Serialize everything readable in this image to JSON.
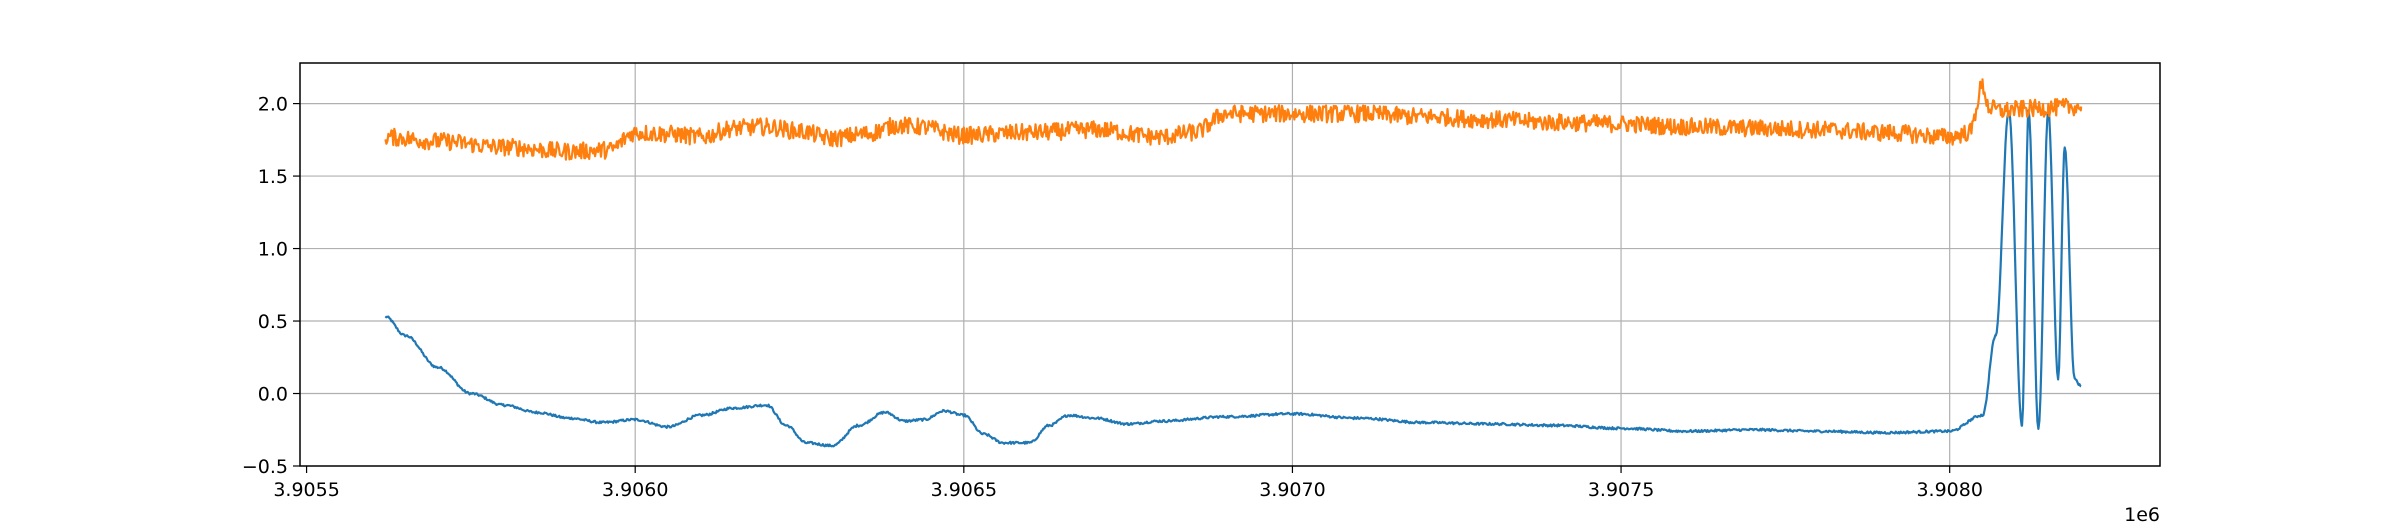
{
  "chart_data": {
    "type": "line",
    "title": "",
    "xlabel": "",
    "ylabel": "",
    "xlim": [
      3905490,
      3908320
    ],
    "ylim": [
      -0.5,
      2.28
    ],
    "grid": true,
    "legend": "none",
    "x_offset_label": "1e6",
    "x_ticks": [
      {
        "value": 3905500,
        "label": "3.9055"
      },
      {
        "value": 3906000,
        "label": "3.9060"
      },
      {
        "value": 3906500,
        "label": "3.9065"
      },
      {
        "value": 3907000,
        "label": "3.9070"
      },
      {
        "value": 3907500,
        "label": "3.9075"
      },
      {
        "value": 3908000,
        "label": "3.9080"
      }
    ],
    "y_ticks": [
      {
        "value": -0.5,
        "label": "−0.5"
      },
      {
        "value": 0.0,
        "label": "0.0"
      },
      {
        "value": 0.5,
        "label": "0.5"
      },
      {
        "value": 1.0,
        "label": "1.0"
      },
      {
        "value": 1.5,
        "label": "1.5"
      },
      {
        "value": 2.0,
        "label": "2.0"
      }
    ],
    "series": [
      {
        "color": "#1f77b4",
        "noise": 0.008,
        "x": [
          3905620,
          3905650,
          3905700,
          3905750,
          3905800,
          3905850,
          3905900,
          3905950,
          3906000,
          3906050,
          3906100,
          3906150,
          3906200,
          3906230,
          3906260,
          3906300,
          3906340,
          3906380,
          3906410,
          3906440,
          3906470,
          3906500,
          3906530,
          3906560,
          3906600,
          3906630,
          3906660,
          3906700,
          3906750,
          3906800,
          3906900,
          3907000,
          3907100,
          3907200,
          3907300,
          3907400,
          3907500,
          3907600,
          3907700,
          3907800,
          3907900,
          3908000,
          3908050,
          3908070,
          3908090,
          3908110,
          3908120,
          3908135,
          3908150,
          3908165,
          3908175,
          3908190,
          3908200
        ],
        "y": [
          0.53,
          0.4,
          0.18,
          0.0,
          -0.08,
          -0.13,
          -0.17,
          -0.2,
          -0.18,
          -0.23,
          -0.15,
          -0.1,
          -0.08,
          -0.22,
          -0.34,
          -0.36,
          -0.22,
          -0.13,
          -0.19,
          -0.18,
          -0.12,
          -0.15,
          -0.28,
          -0.34,
          -0.34,
          -0.22,
          -0.15,
          -0.17,
          -0.21,
          -0.19,
          -0.16,
          -0.14,
          -0.17,
          -0.2,
          -0.21,
          -0.22,
          -0.24,
          -0.26,
          -0.25,
          -0.26,
          -0.27,
          -0.26,
          -0.15,
          0.4,
          1.95,
          -0.22,
          1.95,
          -0.24,
          1.95,
          0.1,
          1.7,
          0.1,
          0.05
        ]
      },
      {
        "color": "#ff7f0e",
        "noise": 0.06,
        "x": [
          3905620,
          3905700,
          3905800,
          3905900,
          3905960,
          3906000,
          3906050,
          3906100,
          3906150,
          3906200,
          3906250,
          3906300,
          3906350,
          3906400,
          3906430,
          3906500,
          3906600,
          3906700,
          3906800,
          3906850,
          3906900,
          3907000,
          3907100,
          3907200,
          3907300,
          3907400,
          3907500,
          3907600,
          3907700,
          3907800,
          3907900,
          3908000,
          3908030,
          3908050,
          3908060,
          3908080,
          3908100,
          3908150,
          3908200
        ],
        "y": [
          1.77,
          1.74,
          1.7,
          1.67,
          1.68,
          1.8,
          1.79,
          1.77,
          1.83,
          1.84,
          1.81,
          1.76,
          1.79,
          1.85,
          1.84,
          1.78,
          1.8,
          1.82,
          1.77,
          1.8,
          1.93,
          1.93,
          1.93,
          1.91,
          1.89,
          1.87,
          1.86,
          1.84,
          1.83,
          1.82,
          1.8,
          1.77,
          1.8,
          2.12,
          1.97,
          1.95,
          1.96,
          1.97,
          1.98
        ]
      }
    ]
  }
}
